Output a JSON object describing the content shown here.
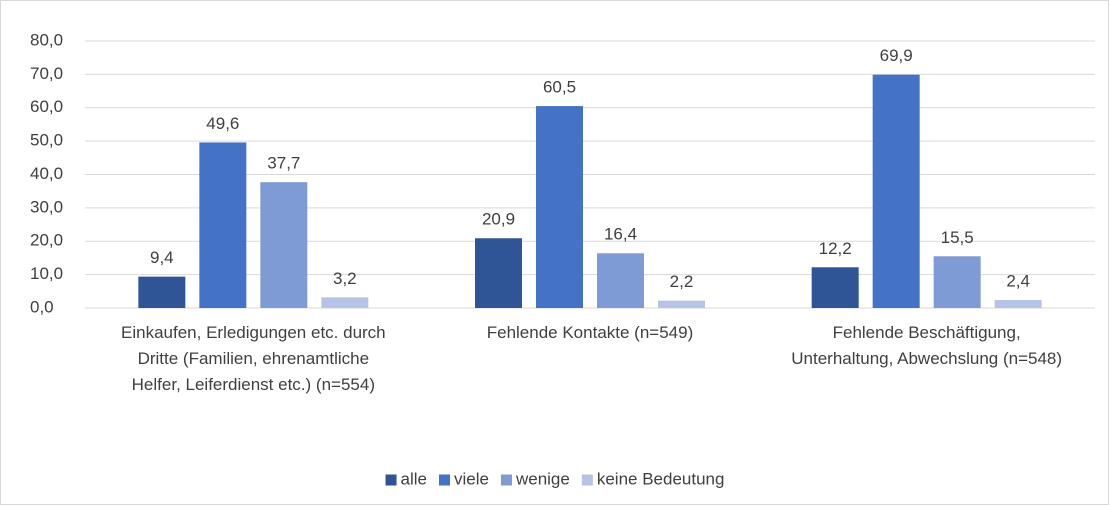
{
  "chart_data": {
    "type": "bar",
    "categories": [
      "Einkaufen, Erledigungen etc. durch Dritte (Familien, ehrenamtliche Helfer, Leiferdienst etc.) (n=554)",
      "Fehlende Kontakte (n=549)",
      "Fehlende Beschäftigung, Unterhaltung, Abwechslung (n=548)"
    ],
    "series": [
      {
        "name": "alle",
        "color": "#2f5597",
        "values": [
          9.4,
          20.9,
          12.2
        ],
        "value_labels": [
          "9,4",
          "20,9",
          "12,2"
        ]
      },
      {
        "name": "viele",
        "color": "#4472c4",
        "values": [
          49.6,
          60.5,
          69.9
        ],
        "value_labels": [
          "49,6",
          "60,5",
          "69,9"
        ]
      },
      {
        "name": "wenige",
        "color": "#7f9bd5",
        "values": [
          37.7,
          16.4,
          15.5
        ],
        "value_labels": [
          "37,7",
          "16,4",
          "15,5"
        ]
      },
      {
        "name": "keine Bedeutung",
        "color": "#b4c3e6",
        "values": [
          3.2,
          2.2,
          2.4
        ],
        "value_labels": [
          "3,2",
          "2,2",
          "2,4"
        ]
      }
    ],
    "ylim": [
      0,
      80
    ],
    "yticks": [
      {
        "value": 0,
        "label": "0,0"
      },
      {
        "value": 10,
        "label": "10,0"
      },
      {
        "value": 20,
        "label": "20,0"
      },
      {
        "value": 30,
        "label": "30,0"
      },
      {
        "value": 40,
        "label": "40,0"
      },
      {
        "value": 50,
        "label": "50,0"
      },
      {
        "value": 60,
        "label": "60,0"
      },
      {
        "value": 70,
        "label": "70,0"
      },
      {
        "value": 80,
        "label": "80,0"
      }
    ],
    "grid": true,
    "legend": "bottom"
  }
}
